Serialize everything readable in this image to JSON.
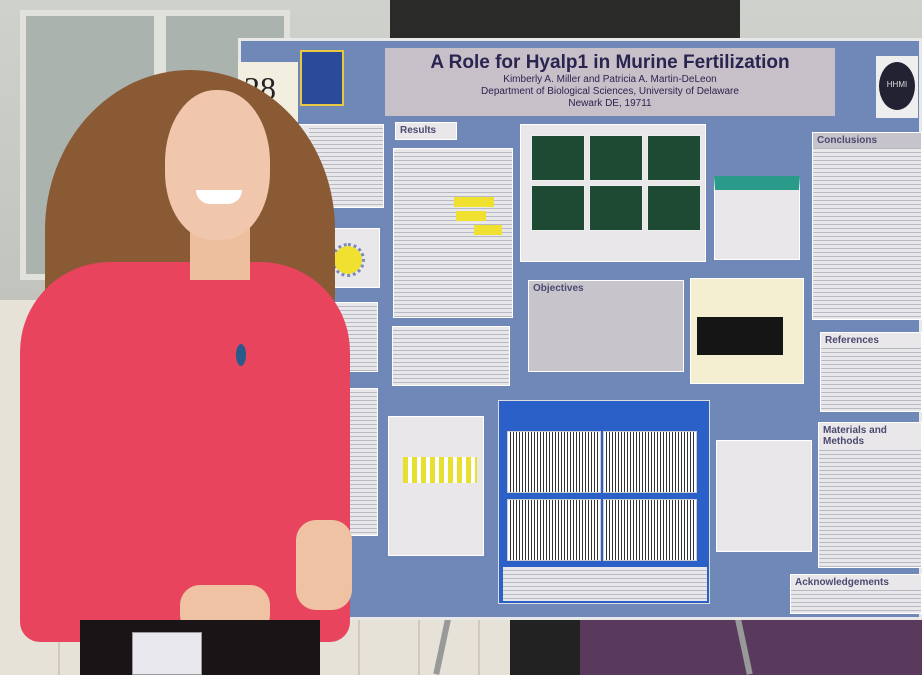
{
  "poster": {
    "board_number": "28",
    "title": "A Role for Hyalp1 in Murine Fertilization",
    "authors": "Kimberly A. Miller and Patricia A. Martin-DeLeon",
    "department": "Department of Biological Sciences, University of Delaware",
    "location": "Newark DE, 19711",
    "logo_text": "HHMI",
    "sections": {
      "abstract": "ract",
      "results": "Results",
      "objectives": "Objectives",
      "conclusions": "Conclusions",
      "references": "References",
      "materials": "Materials and Methods",
      "acknowledgements": "Acknowledgements"
    }
  }
}
